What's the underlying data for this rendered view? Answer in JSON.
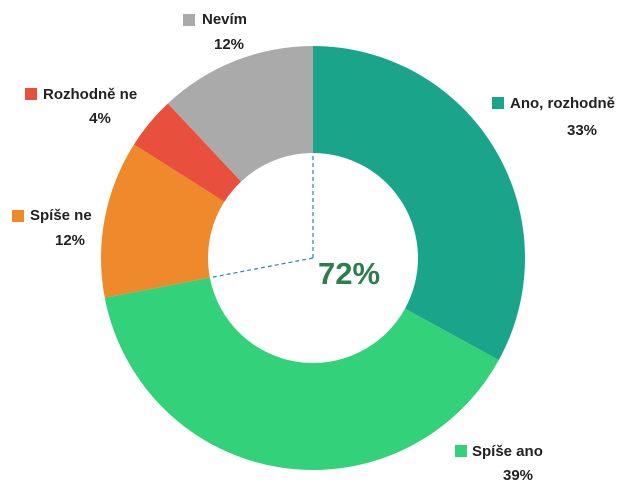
{
  "chart_data": {
    "type": "donut",
    "categories": [
      "Ano, rozhodně",
      "Spíše ano",
      "Spíše ne",
      "Rozhodně ne",
      "Nevím"
    ],
    "values": [
      33,
      39,
      12,
      4,
      12
    ],
    "value_labels": [
      "33%",
      "39%",
      "12%",
      "4%",
      "12%"
    ],
    "colors": [
      "#1aa58b",
      "#33d17a",
      "#ee8a2b",
      "#e84f3c",
      "#aaaaaa"
    ],
    "center_text": "72%"
  }
}
